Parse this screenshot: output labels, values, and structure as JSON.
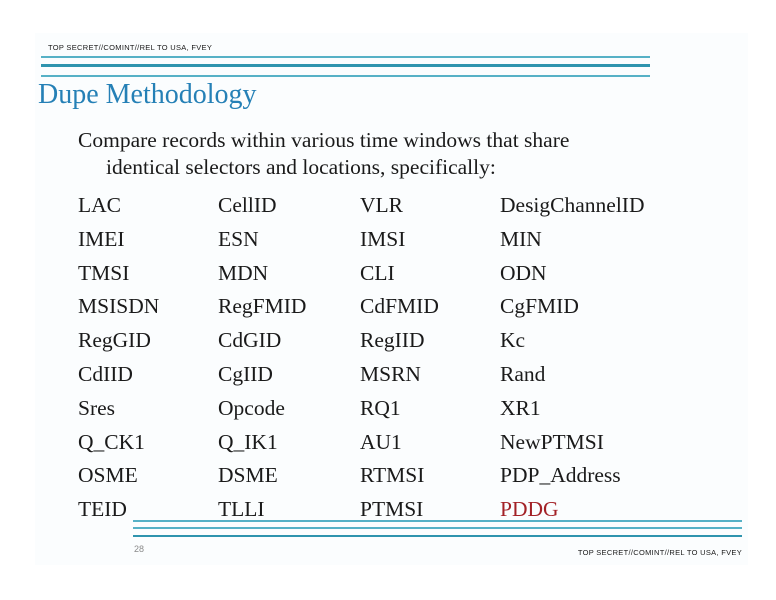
{
  "colors": {
    "title_blue": "#2580b6",
    "rule_teal": "#2f94ae",
    "rule_teal_light": "#56b1c6",
    "highlight_red": "#a32126",
    "page_bg": "#fbfdfe",
    "text_black": "#1a1a1a",
    "muted_gray": "#8a8a8a"
  },
  "header": {
    "classification": "TOP SECRET//COMINT//REL TO USA, FVEY"
  },
  "title": "Dupe Methodology",
  "body": {
    "line1": "Compare records within various time windows that share",
    "line2": "identical selectors and locations, specifically:"
  },
  "table": {
    "rows": [
      [
        "LAC",
        "CellID",
        "VLR",
        "DesigChannelID"
      ],
      [
        "IMEI",
        "ESN",
        "IMSI",
        "MIN"
      ],
      [
        "TMSI",
        "MDN",
        "CLI",
        "ODN"
      ],
      [
        "MSISDN",
        "RegFMID",
        "CdFMID",
        "CgFMID"
      ],
      [
        "RegGID",
        "CdGID",
        "RegIID",
        "Kc"
      ],
      [
        "CdIID",
        "CgIID",
        "MSRN",
        "Rand"
      ],
      [
        "Sres",
        "Opcode",
        "RQ1",
        "XR1"
      ],
      [
        "Q_CK1",
        "Q_IK1",
        "AU1",
        "NewPTMSI"
      ],
      [
        "OSME",
        "DSME",
        "RTMSI",
        "PDP_Address"
      ],
      [
        "TEID",
        "TLLI",
        "PTMSI",
        "PDDG"
      ]
    ],
    "highlight": {
      "row": 9,
      "col": 3
    }
  },
  "footer": {
    "page_number": "28",
    "classification": "TOP SECRET//COMINT//REL TO USA, FVEY"
  }
}
